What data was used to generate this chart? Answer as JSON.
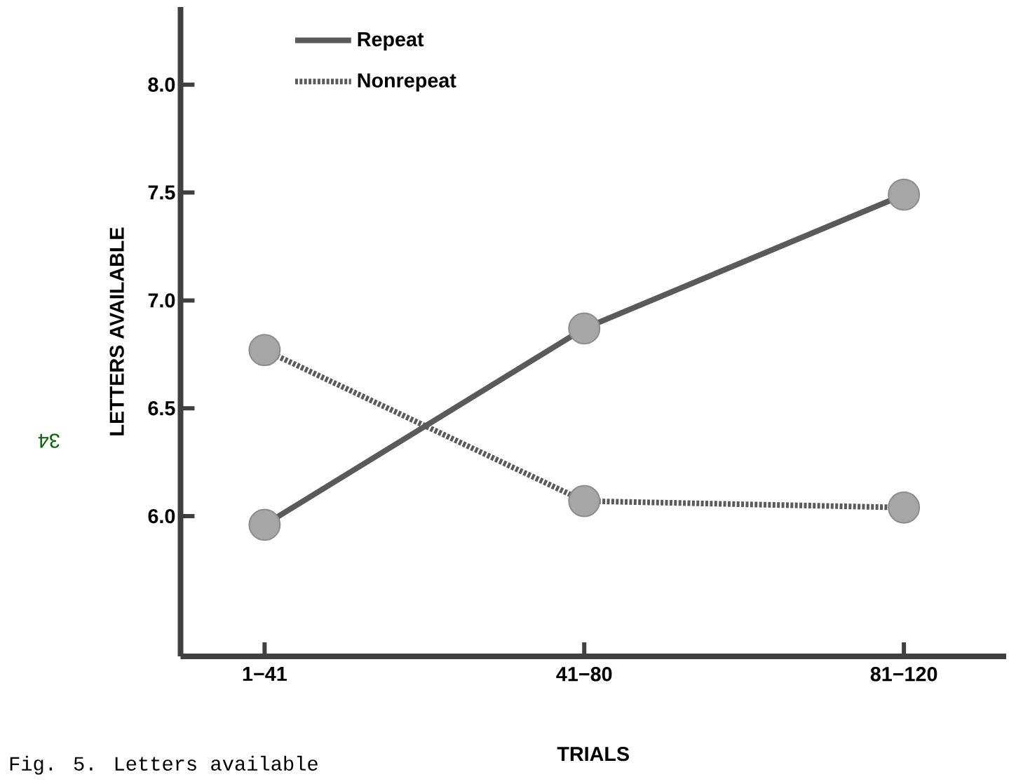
{
  "chart_data": {
    "type": "line",
    "xlabel": "TRIALS",
    "ylabel": "LETTERS AVAILABLE",
    "categories": [
      "1−41",
      "41−80",
      "81−120"
    ],
    "series": [
      {
        "name": "Repeat",
        "color": "#5a5a5a",
        "line_style": "solid",
        "values": [
          5.96,
          6.87,
          7.49
        ]
      },
      {
        "name": "Nonrepeat",
        "color": "#5a5a5a",
        "line_style": "dashed",
        "values": [
          6.77,
          6.07,
          6.04
        ]
      }
    ],
    "ylim": [
      5.35,
      8.36
    ],
    "yticks": [
      {
        "value": 6.0,
        "label": "6.0"
      },
      6.5,
      {
        "value": 7.0,
        "label": "7.0"
      },
      7.5,
      {
        "value": 8.0,
        "label": "8.0"
      }
    ],
    "marker": "circle",
    "legend": "top left",
    "grid": false,
    "annotations": [
      "34",
      "Fig. 5. Letters available"
    ]
  }
}
